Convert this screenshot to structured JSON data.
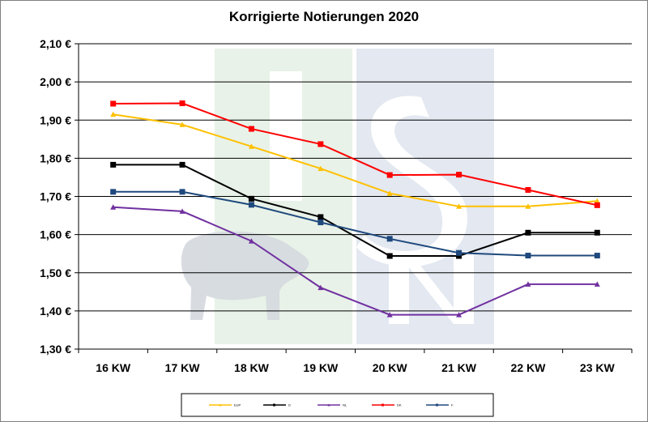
{
  "chart_data": {
    "type": "line",
    "title": "Korrigierte Notierungen 2020",
    "categories": [
      "16 KW",
      "17 KW",
      "18 KW",
      "19 KW",
      "20 KW",
      "21 KW",
      "22 KW",
      "23 KW"
    ],
    "y_ticks": [
      "1,30 €",
      "1,40 €",
      "1,50 €",
      "1,60 €",
      "1,70 €",
      "1,80 €",
      "1,90 €",
      "2,00 €",
      "2,10 €"
    ],
    "ylim": [
      1.3,
      2.1
    ],
    "grid": true,
    "legend_position": "bottom",
    "series": [
      {
        "name": "EUP",
        "color": "#ffc000",
        "marker": "triangle",
        "values": [
          1.915,
          1.888,
          1.831,
          1.773,
          1.708,
          1.674,
          1.674,
          1.688
        ]
      },
      {
        "name": "D",
        "color": "#000000",
        "marker": "square",
        "values": [
          1.783,
          1.783,
          1.694,
          1.646,
          1.544,
          1.544,
          1.605,
          1.605
        ]
      },
      {
        "name": "NL",
        "color": "#7030a0",
        "marker": "triangle",
        "values": [
          1.672,
          1.661,
          1.583,
          1.461,
          1.39,
          1.39,
          1.47,
          1.47
        ]
      },
      {
        "name": "DK",
        "color": "#ff0000",
        "marker": "square",
        "values": [
          1.943,
          1.944,
          1.877,
          1.837,
          1.756,
          1.757,
          1.717,
          1.677
        ]
      },
      {
        "name": "F",
        "color": "#1f497d",
        "marker": "square",
        "values": [
          1.712,
          1.712,
          1.678,
          1.632,
          1.589,
          1.552,
          1.545,
          1.545
        ]
      }
    ]
  }
}
